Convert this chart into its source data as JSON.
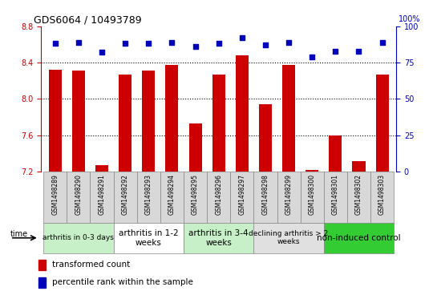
{
  "title": "GDS6064 / 10493789",
  "samples": [
    "GSM1498289",
    "GSM1498290",
    "GSM1498291",
    "GSM1498292",
    "GSM1498293",
    "GSM1498294",
    "GSM1498295",
    "GSM1498296",
    "GSM1498297",
    "GSM1498298",
    "GSM1498299",
    "GSM1498300",
    "GSM1498301",
    "GSM1498302",
    "GSM1498303"
  ],
  "transformed_count": [
    8.32,
    8.31,
    7.27,
    8.27,
    8.31,
    8.37,
    7.73,
    8.27,
    8.48,
    7.94,
    8.37,
    7.22,
    7.6,
    7.32,
    8.27
  ],
  "percentile_rank": [
    88,
    89,
    82,
    88,
    88,
    89,
    86,
    88,
    92,
    87,
    89,
    79,
    83,
    83,
    89
  ],
  "ylim_left": [
    7.2,
    8.8
  ],
  "ylim_right": [
    0,
    100
  ],
  "yticks_left": [
    7.2,
    7.6,
    8.0,
    8.4,
    8.8
  ],
  "yticks_right": [
    0,
    25,
    50,
    75,
    100
  ],
  "groups": [
    {
      "label": "arthritis in 0-3 days",
      "start": 0,
      "end": 3,
      "color": "#c8f0c8",
      "fontsize": 6.5
    },
    {
      "label": "arthritis in 1-2\nweeks",
      "start": 3,
      "end": 6,
      "color": "#ffffff",
      "fontsize": 7.5
    },
    {
      "label": "arthritis in 3-4\nweeks",
      "start": 6,
      "end": 9,
      "color": "#c8f0c8",
      "fontsize": 7.5
    },
    {
      "label": "declining arthritis > 2\nweeks",
      "start": 9,
      "end": 12,
      "color": "#e0e0e0",
      "fontsize": 6.5
    },
    {
      "label": "non-induced control",
      "start": 12,
      "end": 15,
      "color": "#33cc33",
      "fontsize": 7.5
    }
  ],
  "bar_color": "#cc0000",
  "dot_color": "#0000bb",
  "dot_size": 15,
  "bar_width": 0.55,
  "left_axis_color": "#cc0000",
  "right_axis_color": "#0000bb",
  "grid_yticks": [
    7.6,
    8.0,
    8.4
  ],
  "legend_items": [
    {
      "label": "transformed count",
      "color": "#cc0000"
    },
    {
      "label": "percentile rank within the sample",
      "color": "#0000bb"
    }
  ],
  "label_box_color": "#d8d8d8",
  "label_box_edge": "#888888"
}
